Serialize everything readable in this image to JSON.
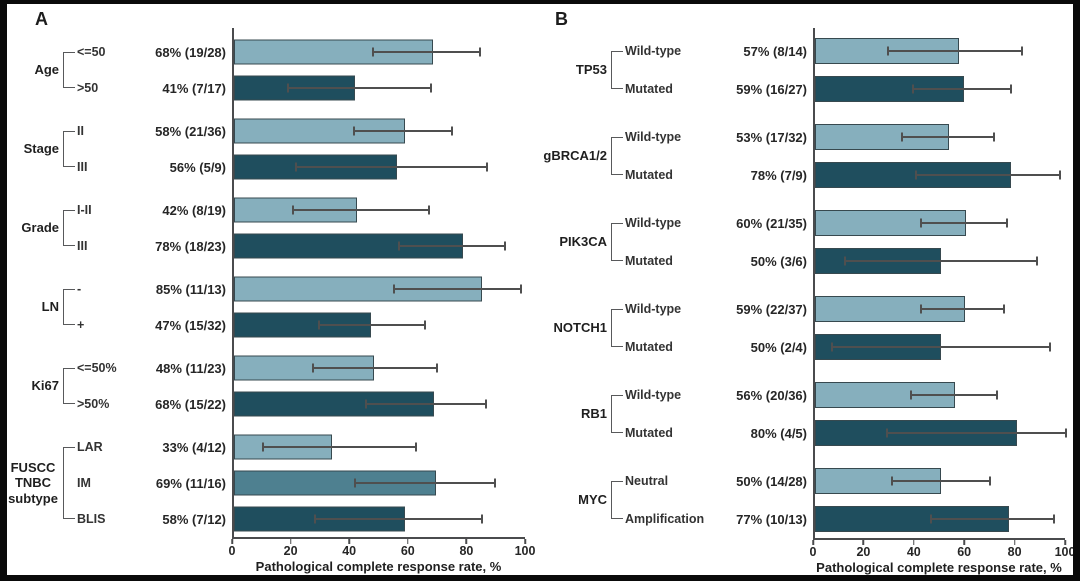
{
  "figure": {
    "background": "#ffffff",
    "frame_color": "#0a0a0a",
    "colors": {
      "light": "#86AFBD",
      "medium": "#4E8090",
      "dark": "#1F4E5E",
      "bar_border": "#37494f",
      "error_bar": "#4f4f4f",
      "axis": "#4a4b4d",
      "text": "#262626"
    }
  },
  "chart_data": [
    {
      "type": "bar",
      "panel_label": "A",
      "orientation": "horizontal",
      "xlabel": "Pathological complete response rate, %",
      "xlim": [
        0,
        100
      ],
      "x_ticks": [
        0,
        20,
        40,
        60,
        80,
        100
      ],
      "grid": false,
      "legend": null,
      "groups": [
        {
          "label": "Age",
          "rows": [
            {
              "category": "<=50",
              "label": "68% (19/28)",
              "value": 67.9,
              "ci": [
                47.6,
                84.1
              ],
              "shade": "light"
            },
            {
              "category": ">50",
              "label": "41% (7/17)",
              "value": 41.2,
              "ci": [
                18.4,
                67.1
              ],
              "shade": "dark"
            }
          ]
        },
        {
          "label": "Stage",
          "rows": [
            {
              "category": "II",
              "label": "58% (21/36)",
              "value": 58.3,
              "ci": [
                40.8,
                74.5
              ],
              "shade": "light"
            },
            {
              "category": "III",
              "label": "56% (5/9)",
              "value": 55.6,
              "ci": [
                21.2,
                86.3
              ],
              "shade": "dark"
            }
          ]
        },
        {
          "label": "Grade",
          "rows": [
            {
              "category": "I-II",
              "label": "42% (8/19)",
              "value": 42.1,
              "ci": [
                20.3,
                66.5
              ],
              "shade": "light"
            },
            {
              "category": "III",
              "label": "78% (18/23)",
              "value": 78.3,
              "ci": [
                56.3,
                92.5
              ],
              "shade": "dark"
            }
          ]
        },
        {
          "label": "LN",
          "rows": [
            {
              "category": "-",
              "label": "85% (11/13)",
              "value": 84.6,
              "ci": [
                54.6,
                98.1
              ],
              "shade": "light"
            },
            {
              "category": "+",
              "label": "47% (15/32)",
              "value": 46.9,
              "ci": [
                29.1,
                65.3
              ],
              "shade": "dark"
            }
          ]
        },
        {
          "label": "Ki67",
          "rows": [
            {
              "category": "<=50%",
              "label": "48% (11/23)",
              "value": 47.8,
              "ci": [
                26.8,
                69.4
              ],
              "shade": "light"
            },
            {
              "category": ">50%",
              "label": "68% (15/22)",
              "value": 68.2,
              "ci": [
                45.1,
                86.1
              ],
              "shade": "dark"
            }
          ]
        },
        {
          "label": "FUSCC TNBC subtype",
          "rows": [
            {
              "category": "LAR",
              "label": "33% (4/12)",
              "value": 33.3,
              "ci": [
                9.9,
                62.0
              ],
              "shade": "light"
            },
            {
              "category": "IM",
              "label": "69% (11/16)",
              "value": 68.8,
              "ci": [
                41.3,
                89.0
              ],
              "shade": "medium"
            },
            {
              "category": "BLIS",
              "label": "58% (7/12)",
              "value": 58.3,
              "ci": [
                27.7,
                84.8
              ],
              "shade": "dark"
            }
          ]
        }
      ]
    },
    {
      "type": "bar",
      "panel_label": "B",
      "orientation": "horizontal",
      "xlabel": "Pathological complete response rate, %",
      "xlim": [
        0,
        100
      ],
      "x_ticks": [
        0,
        20,
        40,
        60,
        80,
        100
      ],
      "grid": false,
      "legend": null,
      "groups": [
        {
          "label": "TP53",
          "rows": [
            {
              "category": "Wild-type",
              "label": "57% (8/14)",
              "value": 57.1,
              "ci": [
                28.9,
                82.3
              ],
              "shade": "light"
            },
            {
              "category": "Mutated",
              "label": "59% (16/27)",
              "value": 59.3,
              "ci": [
                38.8,
                77.6
              ],
              "shade": "dark"
            }
          ]
        },
        {
          "label": "gBRCA1/2",
          "rows": [
            {
              "category": "Wild-type",
              "label": "53% (17/32)",
              "value": 53.1,
              "ci": [
                34.7,
                70.9
              ],
              "shade": "light"
            },
            {
              "category": "Mutated",
              "label": "78% (7/9)",
              "value": 77.8,
              "ci": [
                40.0,
                97.2
              ],
              "shade": "dark"
            }
          ]
        },
        {
          "label": "PIK3CA",
          "rows": [
            {
              "category": "Wild-type",
              "label": "60% (21/35)",
              "value": 60.0,
              "ci": [
                42.1,
                76.1
              ],
              "shade": "light"
            },
            {
              "category": "Mutated",
              "label": "50% (3/6)",
              "value": 50.0,
              "ci": [
                11.8,
                88.2
              ],
              "shade": "dark"
            }
          ]
        },
        {
          "label": "NOTCH1",
          "rows": [
            {
              "category": "Wild-type",
              "label": "59% (22/37)",
              "value": 59.5,
              "ci": [
                42.1,
                75.2
              ],
              "shade": "light"
            },
            {
              "category": "Mutated",
              "label": "50% (2/4)",
              "value": 50.0,
              "ci": [
                6.8,
                93.2
              ],
              "shade": "dark"
            }
          ]
        },
        {
          "label": "RB1",
          "rows": [
            {
              "category": "Wild-type",
              "label": "56% (20/36)",
              "value": 55.6,
              "ci": [
                38.1,
                72.1
              ],
              "shade": "light"
            },
            {
              "category": "Mutated",
              "label": "80% (4/5)",
              "value": 80.0,
              "ci": [
                28.4,
                99.5
              ],
              "shade": "dark"
            }
          ]
        },
        {
          "label": "MYC",
          "rows": [
            {
              "category": "Neutral",
              "label": "50% (14/28)",
              "value": 50.0,
              "ci": [
                30.6,
                69.4
              ],
              "shade": "light"
            },
            {
              "category": "Amplification",
              "label": "77% (10/13)",
              "value": 76.9,
              "ci": [
                46.2,
                95.0
              ],
              "shade": "dark"
            }
          ]
        }
      ]
    }
  ]
}
